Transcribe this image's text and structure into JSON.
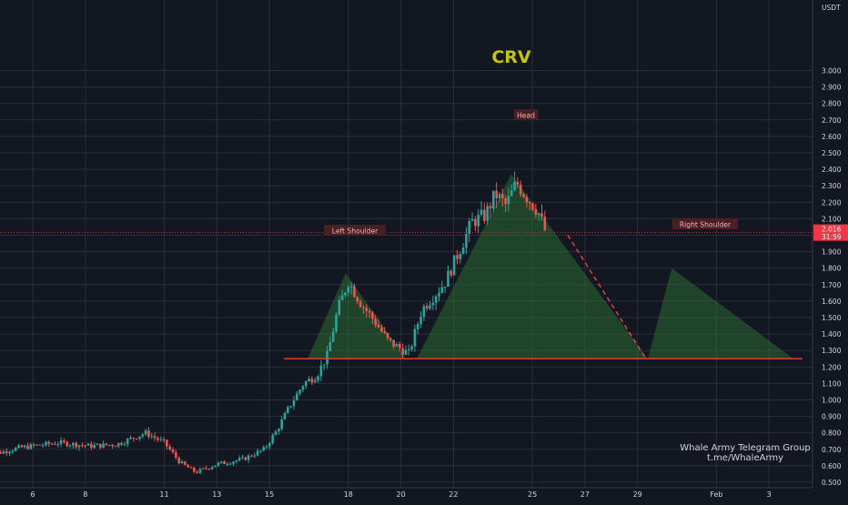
{
  "chart_data": {
    "type": "candlestick",
    "title": "CRV",
    "currency": "USDT",
    "y_ticks": [
      "3.000",
      "2.900",
      "2.800",
      "2.700",
      "2.600",
      "2.500",
      "2.400",
      "2.300",
      "2.200",
      "2.100",
      "2.000",
      "1.900",
      "1.800",
      "1.700",
      "1.600",
      "1.500",
      "1.400",
      "1.300",
      "1.200",
      "1.100",
      "1.000",
      "0.900",
      "0.800",
      "0.700",
      "0.600",
      "0.500"
    ],
    "x_ticks": [
      "6",
      "8",
      "11",
      "13",
      "15",
      "18",
      "20",
      "22",
      "25",
      "27",
      "29",
      "Feb",
      "3"
    ],
    "current_price": "2.016",
    "countdown": "31:59",
    "neckline": 1.25,
    "pattern_labels": [
      "Left Shoulder",
      "Head",
      "Right Shoulder"
    ],
    "pattern_peaks": [
      {
        "label": "Left Shoulder",
        "value": 1.77
      },
      {
        "label": "Head",
        "value": 2.37
      },
      {
        "label": "Right Shoulder",
        "value": 1.8
      }
    ],
    "projection": {
      "from": 2.0,
      "to": 1.25
    },
    "watermark": [
      "Whale Army Telegram Group",
      "t.me/WhaleArmy"
    ],
    "colors": {
      "background": "#131722",
      "grid": "#2a2e39",
      "up": "#26a69a",
      "down": "#ef5350",
      "pattern_fill": "#2e7d32",
      "neckline": "#e53935",
      "title": "#c6c600",
      "price_tag": "#f23645",
      "axis_text": "#d1d4dc"
    }
  }
}
